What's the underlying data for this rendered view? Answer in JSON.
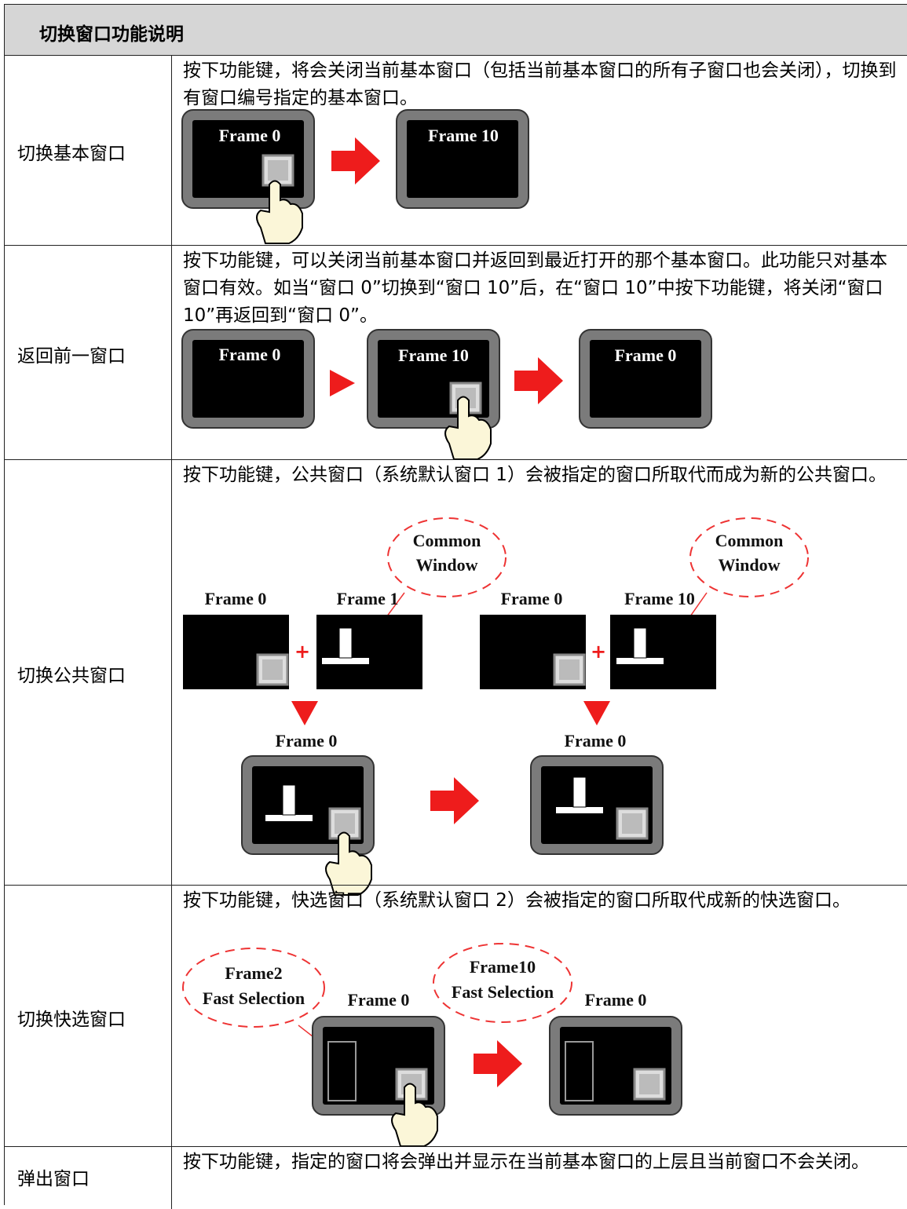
{
  "header": {
    "title": "切换窗口功能说明"
  },
  "table": {
    "rows": [
      {
        "name": "切换基本窗口",
        "description": "按下功能键，将会关闭当前基本窗口（包括当前基本窗口的所有子窗口也会关闭），切换到有窗口编号指定的基本窗口。",
        "figure": {
          "labels": [
            "Frame 0",
            "Frame 10"
          ]
        }
      },
      {
        "name": "返回前一窗口",
        "description": "按下功能键，可以关闭当前基本窗口并返回到最近打开的那个基本窗口。此功能只对基本窗口有效。如当“窗口 0”切换到“窗口 10”后，在“窗口 10”中按下功能键，将关闭“窗口 10”再返回到“窗口 0”。",
        "figure": {
          "labels": [
            "Frame 0",
            "Frame 10",
            "Frame 0"
          ]
        }
      },
      {
        "name": "切换公共窗口",
        "description": "按下功能键，公共窗口（系统默认窗口 1）会被指定的窗口所取代而成为新的公共窗口。",
        "figure": {
          "labels": [
            "Frame 0",
            "Frame 1",
            "Frame 0",
            "Frame 10",
            "Frame 0",
            "Frame 0"
          ],
          "callouts": [
            [
              "Common",
              "Window"
            ],
            [
              "Common",
              "Window"
            ]
          ]
        }
      },
      {
        "name": "切换快选窗口",
        "description": "按下功能键，快选窗口（系统默认窗口 2）会被指定的窗口所取代成新的快选窗口。",
        "figure": {
          "labels": [
            "Frame 0",
            "Frame 0"
          ],
          "callouts": [
            [
              "Frame2",
              "Fast Selection"
            ],
            [
              "Frame10",
              "Fast Selection"
            ]
          ]
        }
      },
      {
        "name": "弹出窗口",
        "description": "按下功能键，指定的窗口将会弹出并显示在当前基本窗口的上层且当前窗口不会关闭。"
      }
    ]
  }
}
